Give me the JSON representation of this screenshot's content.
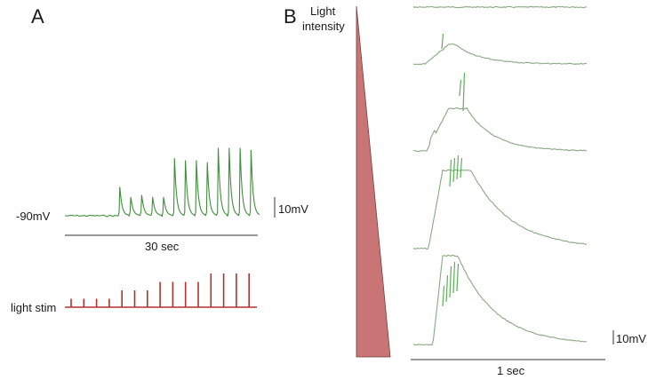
{
  "panel_a": {
    "letter": "A",
    "baseline_label": "-90mV",
    "voltage_scale_label": "10mV",
    "time_scale_label": "30 sec",
    "stim_label": "light stim",
    "response_peaks_mV": [
      14,
      9,
      10,
      9,
      9,
      28,
      27,
      27,
      26,
      33,
      33,
      33,
      32
    ],
    "stim_heights_relative": [
      1,
      1,
      1,
      1,
      2,
      2,
      2,
      3,
      3,
      3,
      3,
      4,
      4,
      4,
      4
    ]
  },
  "panel_b": {
    "letter": "B",
    "intensity_label_line1": "Light",
    "intensity_label_line2": "intensity",
    "voltage_scale_label": "10mV",
    "time_scale_label": "1 sec",
    "trace_count": 5
  },
  "colors": {
    "trace_a": "#3f8f3a",
    "trace_b": "#8aa882",
    "spike_b": "#5fae5a",
    "stim": "#b4322a",
    "wedge": "#c97575",
    "axis": "#333333"
  }
}
